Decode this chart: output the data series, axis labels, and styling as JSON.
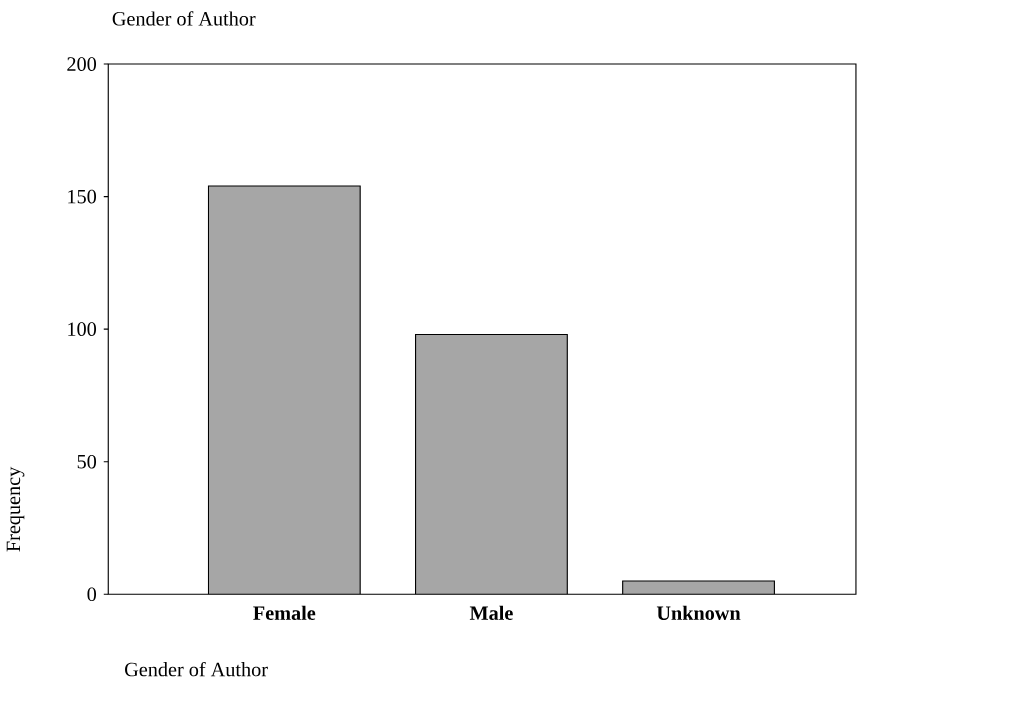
{
  "chart_data": {
    "type": "bar",
    "title": "Gender of Author",
    "xlabel": "Gender of Author",
    "ylabel": "Frequency",
    "categories": [
      "Female",
      "Male",
      "Unknown"
    ],
    "values": [
      154,
      98,
      5
    ],
    "color": "#a6a6a6",
    "ylim": [
      0,
      200
    ],
    "yticks": [
      0,
      50,
      100,
      150,
      200
    ],
    "grid": false
  }
}
